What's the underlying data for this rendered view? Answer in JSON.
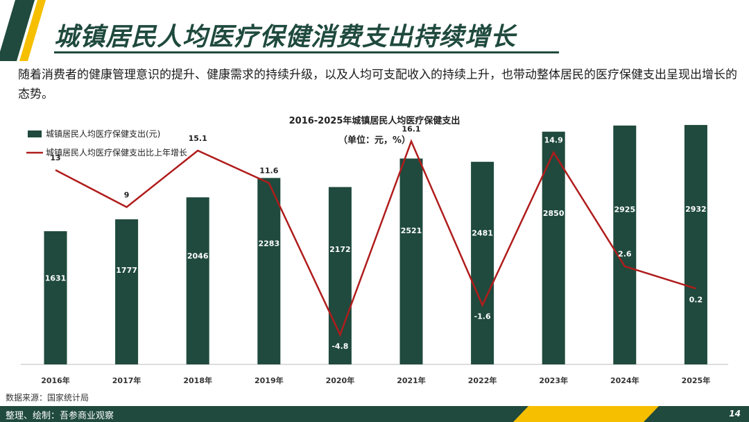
{
  "page": {
    "title": "城镇居民人均医疗保健消费支出持续增长",
    "intro": "随着消费者的健康管理意识的提升、健康需求的持续升级，以及人均可支配收入的持续上升，也带动整体居民的医疗保健支出呈现出增长的态势。",
    "source": "数据来源：国家统计局",
    "footer": "整理、绘制：吾参商业观察",
    "page_number": "14"
  },
  "colors": {
    "bar": "#1f4a3d",
    "line": "#b01c1c",
    "accent": "#f6bf00"
  },
  "chart_data": {
    "type": "bar",
    "title": "2016-2025年城镇居民人均医疗保健支出",
    "subtitle": "（单位：元，%）",
    "categories": [
      "2016年",
      "2017年",
      "2018年",
      "2019年",
      "2020年",
      "2021年",
      "2022年",
      "2023年",
      "2024年",
      "2025年"
    ],
    "series": [
      {
        "name": "城镇居民人均医疗保健支出(元)",
        "type": "bar",
        "values": [
          1631,
          1777,
          2046,
          2283,
          2172,
          2521,
          2481,
          2850,
          2925,
          2932
        ]
      },
      {
        "name": "城镇居民人均医疗保健支出比上年增长",
        "type": "line",
        "values": [
          13,
          9,
          15.1,
          11.6,
          -4.8,
          16.1,
          -1.6,
          14.9,
          2.6,
          0.2
        ]
      }
    ],
    "bar_labels": [
      "1631",
      "1777",
      "2046",
      "2283",
      "2172",
      "2521",
      "2481",
      "2850",
      "2925",
      "2932"
    ],
    "line_labels": [
      "13",
      "9",
      "15.1",
      "11.6",
      "-4.8",
      "16.1",
      "-1.6",
      "14.9",
      "2.6",
      "0.2"
    ],
    "bar_range": [
      0,
      3400
    ],
    "line_range": [
      -8,
      22
    ],
    "grid": false,
    "legend_position": "top-left"
  }
}
